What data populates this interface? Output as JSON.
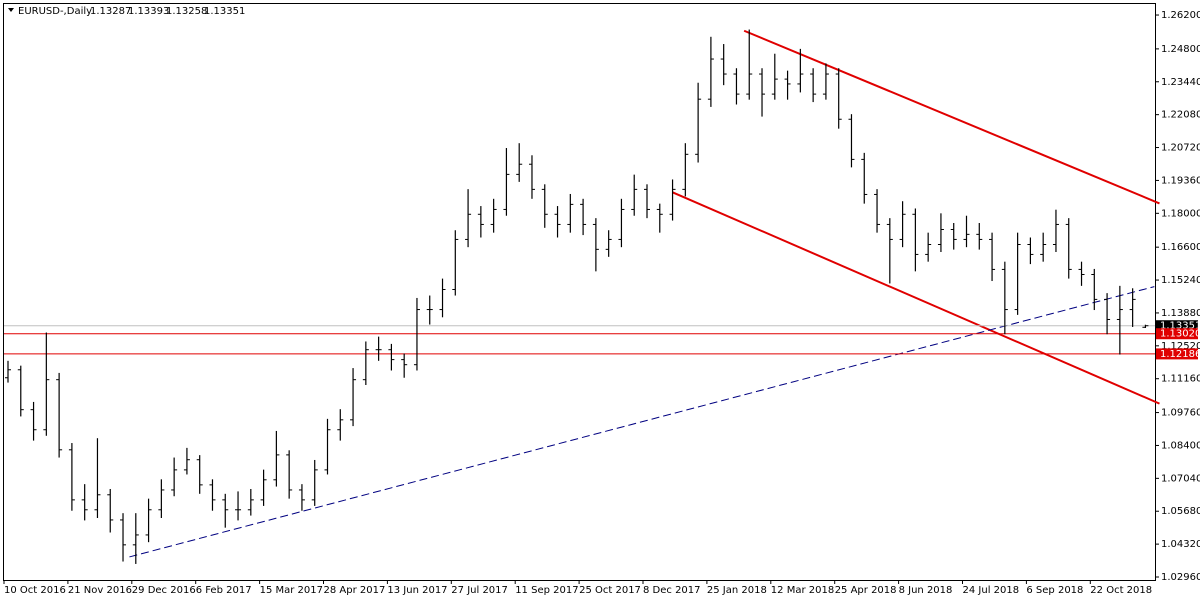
{
  "chart_data": {
    "type": "ohlc",
    "title": "EURUSD-,Daily",
    "categories": [
      "10 Oct 2016",
      null,
      null,
      null,
      null,
      "21 Nov 2016",
      null,
      null,
      null,
      null,
      "29 Dec 2016",
      null,
      null,
      null,
      null,
      "6 Feb 2017",
      null,
      null,
      null,
      null,
      "15 Mar 2017",
      null,
      null,
      null,
      null,
      "28 Apr 2017",
      null,
      null,
      null,
      null,
      "13 Jun 2017",
      null,
      null,
      null,
      null,
      "27 Jul 2017",
      null,
      null,
      null,
      null,
      "11 Sep 2017",
      null,
      null,
      null,
      null,
      "25 Oct 2017",
      null,
      null,
      null,
      null,
      "8 Dec 2017",
      null,
      null,
      null,
      null,
      "25 Jan 2018",
      null,
      null,
      null,
      null,
      "12 Mar 2018",
      null,
      null,
      null,
      null,
      "25 Apr 2018",
      null,
      null,
      null,
      null,
      "8 Jun 2018",
      null,
      null,
      null,
      null,
      "24 Jul 2018",
      null,
      null,
      null,
      null,
      "6 Sep 2018",
      null,
      null,
      null,
      null,
      "22 Oct 2018",
      null,
      null,
      null,
      null
    ],
    "ohlc": [
      [
        1.112,
        1.119,
        1.11,
        1.1153
      ],
      [
        1.1153,
        1.117,
        1.096,
        1.0988
      ],
      [
        1.0988,
        1.102,
        1.086,
        1.0905
      ],
      [
        1.0905,
        1.1307,
        1.088,
        1.1112
      ],
      [
        1.1112,
        1.114,
        1.079,
        1.0822
      ],
      [
        1.0822,
        1.085,
        1.057,
        1.0615
      ],
      [
        1.0615,
        1.068,
        1.053,
        1.0574
      ],
      [
        1.0574,
        1.087,
        1.054,
        1.0636
      ],
      [
        1.0636,
        1.066,
        1.048,
        1.0532
      ],
      [
        1.0532,
        1.056,
        1.036,
        1.0429
      ],
      [
        1.0429,
        1.056,
        1.035,
        1.047
      ],
      [
        1.047,
        1.062,
        1.044,
        1.0574
      ],
      [
        1.0574,
        1.07,
        1.054,
        1.0656
      ],
      [
        1.0656,
        1.079,
        1.063,
        1.0739
      ],
      [
        1.0739,
        1.083,
        1.072,
        1.0781
      ],
      [
        1.0781,
        1.08,
        1.064,
        1.0677
      ],
      [
        1.0677,
        1.07,
        1.057,
        1.0615
      ],
      [
        1.0615,
        1.064,
        1.05,
        1.0574
      ],
      [
        1.0574,
        1.065,
        1.053,
        1.0574
      ],
      [
        1.0574,
        1.066,
        1.055,
        1.0615
      ],
      [
        1.0615,
        1.074,
        1.059,
        1.0698
      ],
      [
        1.0698,
        1.09,
        1.067,
        1.0801
      ],
      [
        1.0801,
        1.082,
        1.062,
        1.0656
      ],
      [
        1.0656,
        1.068,
        1.057,
        1.0615
      ],
      [
        1.0615,
        1.078,
        1.059,
        1.0739
      ],
      [
        1.0739,
        1.095,
        1.072,
        1.0905
      ],
      [
        1.0905,
        1.099,
        1.086,
        1.0946
      ],
      [
        1.0946,
        1.116,
        1.092,
        1.1112
      ],
      [
        1.1112,
        1.127,
        1.109,
        1.1236
      ],
      [
        1.1236,
        1.129,
        1.119,
        1.1236
      ],
      [
        1.1236,
        1.126,
        1.115,
        1.1195
      ],
      [
        1.1195,
        1.122,
        1.112,
        1.1174
      ],
      [
        1.1174,
        1.145,
        1.115,
        1.1402
      ],
      [
        1.1402,
        1.146,
        1.134,
        1.1402
      ],
      [
        1.1402,
        1.153,
        1.137,
        1.1485
      ],
      [
        1.1485,
        1.173,
        1.146,
        1.1692
      ],
      [
        1.1692,
        1.19,
        1.166,
        1.1796
      ],
      [
        1.1796,
        1.183,
        1.17,
        1.1754
      ],
      [
        1.1754,
        1.186,
        1.172,
        1.1816
      ],
      [
        1.1816,
        1.207,
        1.179,
        1.1961
      ],
      [
        1.1961,
        1.209,
        1.193,
        1.2003
      ],
      [
        1.2003,
        1.204,
        1.186,
        1.1899
      ],
      [
        1.1899,
        1.192,
        1.174,
        1.1796
      ],
      [
        1.1796,
        1.183,
        1.17,
        1.1754
      ],
      [
        1.1754,
        1.188,
        1.172,
        1.1837
      ],
      [
        1.1837,
        1.186,
        1.171,
        1.1754
      ],
      [
        1.1754,
        1.178,
        1.156,
        1.1651
      ],
      [
        1.1651,
        1.173,
        1.162,
        1.1692
      ],
      [
        1.1692,
        1.186,
        1.166,
        1.1816
      ],
      [
        1.1816,
        1.196,
        1.179,
        1.1899
      ],
      [
        1.1899,
        1.192,
        1.178,
        1.1816
      ],
      [
        1.1816,
        1.184,
        1.172,
        1.1796
      ],
      [
        1.1796,
        1.194,
        1.177,
        1.1899
      ],
      [
        1.1899,
        1.209,
        1.187,
        1.2044
      ],
      [
        1.2044,
        1.234,
        1.201,
        1.2272
      ],
      [
        1.2272,
        1.253,
        1.224,
        1.2438
      ],
      [
        1.2438,
        1.25,
        1.233,
        1.2376
      ],
      [
        1.2376,
        1.24,
        1.225,
        1.2293
      ],
      [
        1.2293,
        1.256,
        1.227,
        1.2376
      ],
      [
        1.2376,
        1.24,
        1.22,
        1.2293
      ],
      [
        1.2293,
        1.246,
        1.227,
        1.2355
      ],
      [
        1.2355,
        1.239,
        1.227,
        1.2335
      ],
      [
        1.2335,
        1.248,
        1.23,
        1.2376
      ],
      [
        1.2376,
        1.24,
        1.226,
        1.2293
      ],
      [
        1.2293,
        1.242,
        1.227,
        1.2376
      ],
      [
        1.2376,
        1.24,
        1.215,
        1.2189
      ],
      [
        1.2189,
        1.221,
        1.199,
        1.2023
      ],
      [
        1.2023,
        1.205,
        1.184,
        1.1878
      ],
      [
        1.1878,
        1.19,
        1.172,
        1.1754
      ],
      [
        1.1754,
        1.178,
        1.151,
        1.1692
      ],
      [
        1.1692,
        1.185,
        1.166,
        1.1796
      ],
      [
        1.1796,
        1.182,
        1.156,
        1.163
      ],
      [
        1.163,
        1.172,
        1.16,
        1.1671
      ],
      [
        1.1671,
        1.18,
        1.164,
        1.1733
      ],
      [
        1.1733,
        1.176,
        1.165,
        1.1692
      ],
      [
        1.1692,
        1.179,
        1.166,
        1.1713
      ],
      [
        1.1713,
        1.176,
        1.165,
        1.1692
      ],
      [
        1.1692,
        1.172,
        1.152,
        1.1568
      ],
      [
        1.1568,
        1.16,
        1.13,
        1.1402
      ],
      [
        1.1402,
        1.172,
        1.138,
        1.1671
      ],
      [
        1.1671,
        1.17,
        1.159,
        1.163
      ],
      [
        1.163,
        1.172,
        1.16,
        1.1671
      ],
      [
        1.1671,
        1.1815,
        1.164,
        1.1754
      ],
      [
        1.1754,
        1.178,
        1.153,
        1.1568
      ],
      [
        1.1568,
        1.16,
        1.15,
        1.1547
      ],
      [
        1.1547,
        1.157,
        1.14,
        1.1444
      ],
      [
        1.1444,
        1.147,
        1.13,
        1.1361
      ],
      [
        1.1361,
        1.15,
        1.1216,
        1.1402
      ],
      [
        1.1402,
        1.149,
        1.133,
        1.1444
      ],
      [
        1.13287,
        1.13393,
        1.13258,
        1.13351
      ]
    ],
    "color": "#000000",
    "ylim": [
      1.02836,
      1.26656
    ],
    "yticks": [
      {
        "value": 1.262,
        "label": "1.26200"
      },
      {
        "value": 1.248,
        "label": "1.24800"
      },
      {
        "value": 1.2344,
        "label": "1.23440"
      },
      {
        "value": 1.2208,
        "label": "1.22080"
      },
      {
        "value": 1.2072,
        "label": "1.20720"
      },
      {
        "value": 1.1936,
        "label": "1.19360"
      },
      {
        "value": 1.18,
        "label": "1.18000"
      },
      {
        "value": 1.166,
        "label": "1.16600"
      },
      {
        "value": 1.1524,
        "label": "1.15240"
      },
      {
        "value": 1.1388,
        "label": "1.13880"
      },
      {
        "value": 1.1252,
        "label": "1.12520"
      },
      {
        "value": 1.1116,
        "label": "1.11160"
      },
      {
        "value": 1.0976,
        "label": "1.09760"
      },
      {
        "value": 1.084,
        "label": "1.08400"
      },
      {
        "value": 1.0704,
        "label": "1.07040"
      },
      {
        "value": 1.0568,
        "label": "1.05680"
      },
      {
        "value": 1.0432,
        "label": "1.04320"
      },
      {
        "value": 1.0296,
        "label": "1.02960"
      }
    ],
    "levels": [
      {
        "value": 1.13351,
        "label": "1.13351",
        "color": "#c0c0c0",
        "box": "#000000"
      },
      {
        "value": 1.1302,
        "label": "1.13020",
        "color": "#e00000",
        "box": "#e00000"
      },
      {
        "value": 1.12186,
        "label": "1.12186",
        "color": "#e00000",
        "box": "#e00000"
      }
    ],
    "trendlines": [
      {
        "color": "#e00000",
        "dash": false,
        "points": [
          [
            57.6,
            1.2555
          ],
          [
            90.1,
            1.1841
          ]
        ]
      },
      {
        "color": "#e00000",
        "dash": false,
        "points": [
          [
            52,
            1.1887
          ],
          [
            90.1,
            1.1013
          ]
        ]
      },
      {
        "color": "#000080",
        "dash": true,
        "points": [
          [
            9.5,
            1.0379
          ],
          [
            89.7,
            1.1497
          ]
        ]
      }
    ]
  }
}
